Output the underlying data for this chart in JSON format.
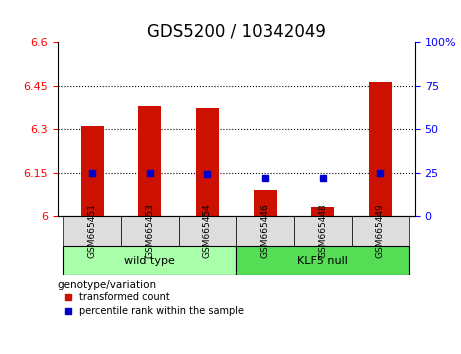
{
  "title": "GDS5200 / 10342049",
  "samples": [
    "GSM665451",
    "GSM665453",
    "GSM665454",
    "GSM665446",
    "GSM665448",
    "GSM665449"
  ],
  "transformed_counts": [
    6.31,
    6.38,
    6.375,
    6.09,
    6.03,
    6.465
  ],
  "percentile_ranks": [
    25,
    25,
    24,
    22,
    22,
    25
  ],
  "bar_base": 6.0,
  "ylim_left": [
    6.0,
    6.6
  ],
  "ylim_right": [
    0,
    100
  ],
  "yticks_left": [
    6.0,
    6.15,
    6.3,
    6.45,
    6.6
  ],
  "ytick_labels_left": [
    "6",
    "6.15",
    "6.3",
    "6.45",
    "6.6"
  ],
  "yticks_right": [
    0,
    25,
    50,
    75,
    100
  ],
  "ytick_labels_right": [
    "0",
    "25",
    "50",
    "75",
    "100%"
  ],
  "hlines": [
    6.15,
    6.3,
    6.45
  ],
  "bar_color": "#cc1100",
  "dot_color": "#0000cc",
  "wild_type_samples": [
    "GSM665451",
    "GSM665453",
    "GSM665454"
  ],
  "klf5_samples": [
    "GSM665446",
    "GSM665448",
    "GSM665449"
  ],
  "wild_type_label": "wild type",
  "klf5_label": "KLF5 null",
  "genotype_label": "genotype/variation",
  "legend_bar_label": "transformed count",
  "legend_dot_label": "percentile rank within the sample",
  "wild_type_color": "#aaffaa",
  "klf5_color": "#55dd55",
  "label_area_color": "#dddddd",
  "title_fontsize": 12,
  "axis_fontsize": 9,
  "tick_fontsize": 8,
  "bar_width": 0.4
}
